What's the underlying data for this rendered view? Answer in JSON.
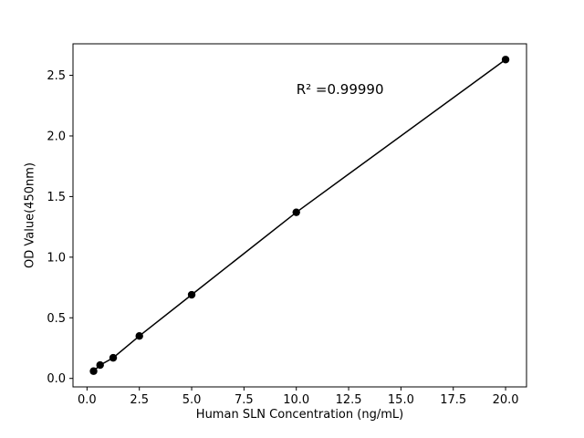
{
  "chart_data": {
    "type": "scatter-line",
    "title": "",
    "xlabel": "Human SLN Concentration (ng/mL)",
    "ylabel": "OD Value(450nm)",
    "annotation": "R² =0.99990",
    "annotation_pos": [
      10.0,
      2.45
    ],
    "x": [
      0.313,
      0.625,
      1.25,
      2.5,
      5,
      10,
      20
    ],
    "y": [
      0.06,
      0.11,
      0.17,
      0.35,
      0.69,
      1.37,
      2.63
    ],
    "xlim": [
      -0.67,
      21.0
    ],
    "ylim": [
      -0.07,
      2.76
    ],
    "xticks": [
      0.0,
      2.5,
      5.0,
      7.5,
      10.0,
      12.5,
      15.0,
      17.5,
      20.0
    ],
    "xtick_labels": [
      "0.0",
      "2.5",
      "5.0",
      "7.5",
      "10.0",
      "12.5",
      "15.0",
      "17.5",
      "20.0"
    ],
    "yticks": [
      0.0,
      0.5,
      1.0,
      1.5,
      2.0,
      2.5
    ],
    "ytick_labels": [
      "0.0",
      "0.5",
      "1.0",
      "1.5",
      "2.0",
      "2.5"
    ],
    "line_color": "#000000",
    "marker_color": "#000000",
    "grid": false,
    "legend": null
  }
}
